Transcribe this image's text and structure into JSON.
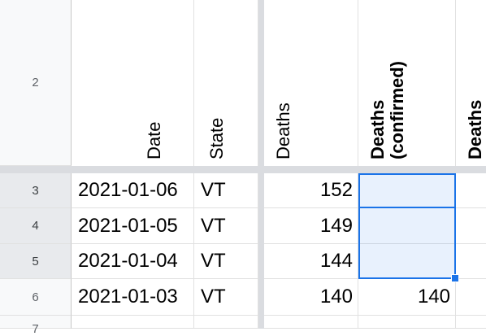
{
  "header_row": {
    "row_number": "2",
    "columns": [
      {
        "label": "Date"
      },
      {
        "label": "State"
      },
      {
        "label": "Deaths"
      },
      {
        "label_line1": "Deaths",
        "label_line2": "(confirmed)"
      },
      {
        "label": "Deaths"
      }
    ]
  },
  "rows": [
    {
      "row_number": "3",
      "date": "2021-01-06",
      "state": "VT",
      "deaths": "152",
      "deaths_confirmed": ""
    },
    {
      "row_number": "4",
      "date": "2021-01-05",
      "state": "VT",
      "deaths": "149",
      "deaths_confirmed": ""
    },
    {
      "row_number": "5",
      "date": "2021-01-04",
      "state": "VT",
      "deaths": "144",
      "deaths_confirmed": ""
    },
    {
      "row_number": "6",
      "date": "2021-01-03",
      "state": "VT",
      "deaths": "140",
      "deaths_confirmed": "140"
    },
    {
      "row_number": "7"
    }
  ],
  "selection": {
    "color": "#1a73e8"
  }
}
